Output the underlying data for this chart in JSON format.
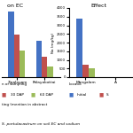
{
  "left_chart": {
    "title": "on EC",
    "locations": [
      "Tipalayam",
      "Palayakottai"
    ],
    "groups": [
      "Initial",
      "30 DAP",
      "60 DAP"
    ],
    "colors": [
      "#4472C4",
      "#C0504D",
      "#9BBB59"
    ],
    "values": [
      [
        2.7,
        1.75,
        1.1
      ],
      [
        1.5,
        0.85,
        0.45
      ]
    ]
  },
  "right_chart": {
    "title": "Effect",
    "locations": [
      "Mangalam",
      "A"
    ],
    "groups": [
      "Initial",
      "S",
      "60 DAP"
    ],
    "colors": [
      "#4472C4",
      "#C0504D",
      "#9BBB59"
    ],
    "values": [
      [
        3400,
        700,
        520
      ],
      [
        0,
        0,
        0
      ]
    ],
    "ylabel": "Na (mg/kg)",
    "ylim": [
      0,
      4000
    ],
    "yticks": [
      0,
      500,
      1000,
      1500,
      2000,
      2500,
      3000,
      3500,
      4000
    ]
  },
  "left_legend_title": "n of sampling",
  "left_legend": [
    {
      "label": "30 DAP",
      "color": "#C0504D"
    },
    {
      "label": "60 DAP",
      "color": "#9BBB59"
    }
  ],
  "right_legend_title": "Locatio",
  "right_legend": [
    {
      "label": "Initial",
      "color": "#4472C4"
    },
    {
      "label": "S",
      "color": "#C0504D"
    }
  ],
  "line2": "ting (mention in abstract",
  "caption": "S. portulacastrum on soil EC and sodium",
  "background_color": "#ffffff"
}
